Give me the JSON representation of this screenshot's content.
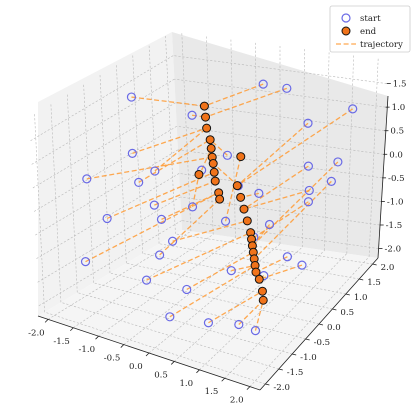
{
  "chart_data": {
    "type": "scatter",
    "dimension": "3d",
    "projection": "perspective, elev ~30, azim ~-60",
    "grid": true,
    "legend_placement": "top-right",
    "xlim": [
      -2.2,
      2.2
    ],
    "ylim": [
      -2.2,
      2.2
    ],
    "zlim": [
      -2.2,
      2.0
    ],
    "x_ticks": [
      "-2.0",
      "-1.5",
      "-1.0",
      "-0.5",
      "0.0",
      "0.5",
      "1.0",
      "1.5",
      "2.0"
    ],
    "y_ticks": [
      "-2.0",
      "-1.5",
      "-1.0",
      "-0.5",
      "0.0",
      "0.5",
      "1.0",
      "1.5",
      "2.0"
    ],
    "z_ticks": [
      "-2.0",
      "-1.5",
      "-1.0",
      "-0.5",
      "0.0",
      "0.5",
      "1.0",
      "1.5"
    ],
    "legend": [
      "start",
      "end",
      "trajectory"
    ],
    "colors": {
      "start": "#6a6ae6",
      "end": "#f0731a",
      "trajectory": "#ff9a33"
    },
    "series": [
      {
        "name": "start",
        "points": [
          [
            -1.8,
            0.3,
            1.5
          ],
          [
            -1.9,
            -1.0,
            0.3
          ],
          [
            -1.4,
            -1.2,
            -0.3
          ],
          [
            -1.0,
            -0.3,
            0.4
          ],
          [
            -0.8,
            0.6,
            1.2
          ],
          [
            -1.6,
            -1.6,
            -1.1
          ],
          [
            -0.3,
            -0.9,
            -0.6
          ],
          [
            -0.5,
            0.4,
            0.2
          ],
          [
            0.2,
            1.3,
            1.7
          ],
          [
            0.5,
            1.6,
            1.5
          ],
          [
            -0.1,
            0.6,
            0.5
          ],
          [
            0.3,
            0.3,
            0.1
          ],
          [
            1.0,
            1.5,
            0.9
          ],
          [
            -0.9,
            -0.5,
            -0.2
          ],
          [
            -1.5,
            -0.2,
            0.6
          ],
          [
            0.1,
            -1.1,
            -1.4
          ],
          [
            0.7,
            -0.6,
            -1.1
          ],
          [
            0.6,
            0.5,
            -0.1
          ],
          [
            -0.4,
            -1.6,
            -1.1
          ],
          [
            1.2,
            1.2,
            0.2
          ],
          [
            1.5,
            0.7,
            -0.2
          ],
          [
            1.8,
            1.2,
            0.4
          ],
          [
            2.0,
            1.3,
            1.5
          ],
          [
            2.0,
            0.6,
            0.4
          ],
          [
            1.6,
            -0.2,
            -0.8
          ],
          [
            1.3,
            -0.5,
            -1.1
          ],
          [
            0.6,
            -1.2,
            -1.9
          ],
          [
            1.1,
            -1.0,
            -1.9
          ],
          [
            1.6,
            -1.3,
            -1.7
          ],
          [
            0.0,
            -1.5,
            -1.8
          ],
          [
            -0.5,
            -1.0,
            -0.9
          ],
          [
            -0.7,
            -0.6,
            -0.4
          ],
          [
            -1.2,
            -0.5,
            0.2
          ],
          [
            1.9,
            -0.2,
            -0.9
          ],
          [
            -0.2,
            -0.4,
            -0.1
          ],
          [
            0.4,
            -0.3,
            -0.3
          ],
          [
            1.0,
            0.2,
            -0.5
          ],
          [
            1.4,
            0.9,
            -0.1
          ],
          [
            0.8,
            0.0,
            -0.7
          ]
        ]
      },
      {
        "name": "end",
        "points": [
          [
            -0.8,
            1.0,
            1.2
          ],
          [
            -0.75,
            0.95,
            1.0
          ],
          [
            -0.7,
            0.9,
            0.8
          ],
          [
            -0.6,
            0.85,
            0.6
          ],
          [
            -0.55,
            0.8,
            0.45
          ],
          [
            -0.5,
            0.75,
            0.3
          ],
          [
            -0.45,
            0.7,
            0.2
          ],
          [
            -0.4,
            0.65,
            0.05
          ],
          [
            -0.35,
            0.6,
            -0.1
          ],
          [
            -0.25,
            0.55,
            -0.3
          ],
          [
            -0.2,
            0.5,
            -0.4
          ],
          [
            0.1,
            0.6,
            -0.1
          ],
          [
            0.2,
            0.55,
            -0.3
          ],
          [
            0.3,
            0.5,
            -0.5
          ],
          [
            0.4,
            0.45,
            -0.7
          ],
          [
            0.5,
            0.4,
            -0.9
          ],
          [
            0.55,
            0.35,
            -1.0
          ],
          [
            0.6,
            0.3,
            -1.1
          ],
          [
            0.65,
            0.25,
            -1.2
          ],
          [
            0.7,
            0.2,
            -1.3
          ],
          [
            0.75,
            0.15,
            -1.4
          ],
          [
            0.8,
            0.1,
            -1.5
          ],
          [
            0.9,
            0.05,
            -1.6
          ],
          [
            1.0,
            0.0,
            -1.8
          ],
          [
            1.05,
            -0.05,
            -1.95
          ],
          [
            -0.65,
            0.55,
            0.0
          ],
          [
            0.05,
            0.8,
            0.4
          ]
        ]
      },
      {
        "name": "trajectory",
        "note_pairs": "start index -> end index",
        "pairs": [
          [
            0,
            0
          ],
          [
            1,
            5
          ],
          [
            2,
            7
          ],
          [
            3,
            2
          ],
          [
            4,
            1
          ],
          [
            5,
            9
          ],
          [
            6,
            14
          ],
          [
            7,
            4
          ],
          [
            8,
            0
          ],
          [
            9,
            1
          ],
          [
            10,
            3
          ],
          [
            11,
            6
          ],
          [
            12,
            11
          ],
          [
            13,
            8
          ],
          [
            14,
            2
          ],
          [
            15,
            18
          ],
          [
            16,
            20
          ],
          [
            17,
            12
          ],
          [
            18,
            15
          ],
          [
            19,
            13
          ],
          [
            20,
            16
          ],
          [
            21,
            17
          ],
          [
            22,
            11
          ],
          [
            23,
            19
          ],
          [
            24,
            21
          ],
          [
            25,
            22
          ],
          [
            26,
            23
          ],
          [
            27,
            24
          ],
          [
            28,
            24
          ],
          [
            29,
            20
          ],
          [
            30,
            10
          ],
          [
            31,
            9
          ],
          [
            32,
            3
          ],
          [
            33,
            22
          ],
          [
            34,
            25
          ],
          [
            35,
            26
          ],
          [
            36,
            17
          ],
          [
            37,
            13
          ],
          [
            38,
            19
          ]
        ]
      }
    ]
  }
}
